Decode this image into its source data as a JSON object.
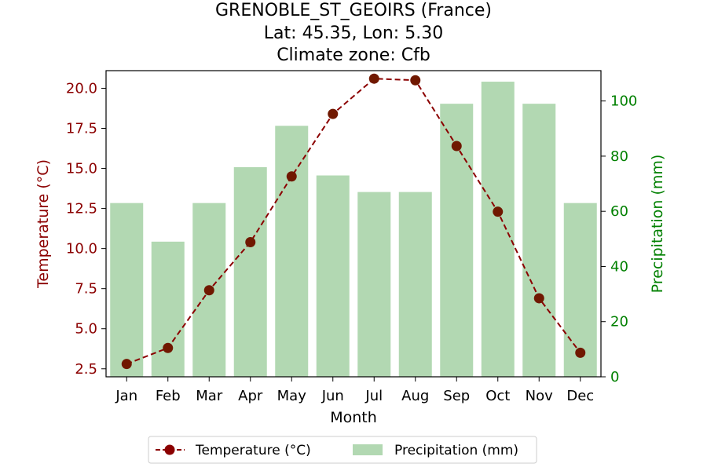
{
  "chart_data": {
    "type": "bar+line",
    "title": {
      "line1": "GRENOBLE_ST_GEOIRS (France)",
      "line2": "Lat: 45.35, Lon: 5.30",
      "line3": "Climate zone: Cfb"
    },
    "categories": [
      "Jan",
      "Feb",
      "Mar",
      "Apr",
      "May",
      "Jun",
      "Jul",
      "Aug",
      "Sep",
      "Oct",
      "Nov",
      "Dec"
    ],
    "xlabel": "Month",
    "ylabel_left": "Temperature (°C)",
    "ylabel_right": "Precipitation (mm)",
    "ylim_left": [
      2.0,
      21.1
    ],
    "ylim_right": [
      0,
      111
    ],
    "yticks_left": [
      "2.5",
      "5.0",
      "7.5",
      "10.0",
      "12.5",
      "15.0",
      "17.5",
      "20.0"
    ],
    "yticks_right": [
      "0",
      "20",
      "40",
      "60",
      "80",
      "100"
    ],
    "grid": false,
    "legend_position": "bottom-center",
    "series": [
      {
        "name": "Temperature (°C)",
        "kind": "line",
        "axis": "left",
        "color": "#8b0000",
        "values": [
          2.8,
          3.8,
          7.4,
          10.4,
          14.5,
          18.4,
          20.6,
          20.5,
          16.4,
          12.3,
          6.9,
          3.5
        ]
      },
      {
        "name": "Precipitation (mm)",
        "kind": "bar",
        "axis": "right",
        "color": "#b2d8b2",
        "values": [
          63,
          49,
          63,
          76,
          91,
          73,
          67,
          67,
          99,
          107,
          99,
          63
        ]
      }
    ]
  }
}
